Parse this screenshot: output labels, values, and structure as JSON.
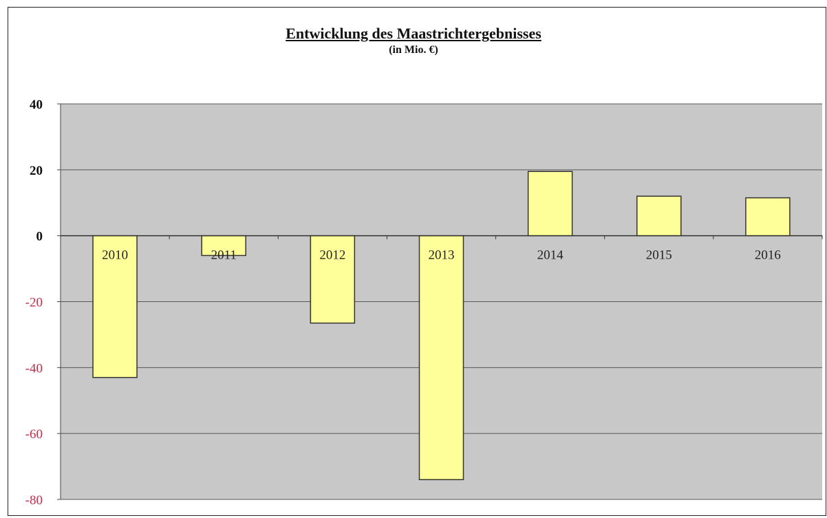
{
  "chart_data": {
    "type": "bar",
    "title": "Entwicklung des Maastrichtergebnisses",
    "subtitle": "(in Mio. €)",
    "xlabel": "",
    "ylabel": "",
    "categories": [
      "2010",
      "2011",
      "2012",
      "2013",
      "2014",
      "2015",
      "2016"
    ],
    "values": [
      -43,
      -6,
      -26.5,
      -74,
      19.5,
      12,
      11.5
    ],
    "ylim": [
      -80,
      40
    ],
    "yticks": [
      40,
      20,
      0,
      -20,
      -40,
      -60,
      -80
    ],
    "yticklabels": [
      "40",
      "20",
      "0",
      "-20",
      "-40",
      "-60",
      "-80"
    ],
    "grid": true,
    "category_labels_position": "below-zero-line",
    "colors": {
      "plot_background": "#c8c8c8",
      "bar_fill": "#ffff99",
      "bar_stroke": "#333333",
      "positive_tick": "#111111",
      "negative_tick": "#c0304a"
    }
  }
}
